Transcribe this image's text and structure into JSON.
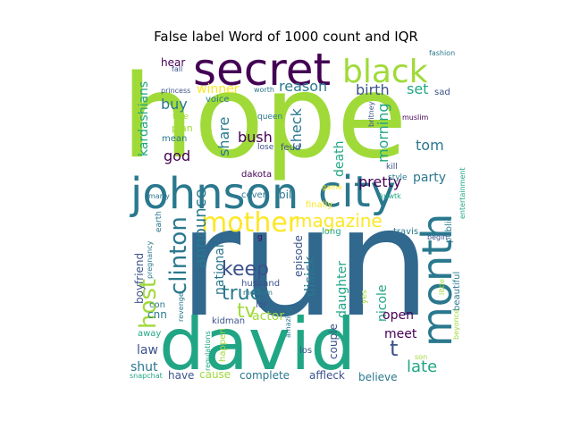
{
  "title": "False label Word of 1000 count and IQR",
  "words": [
    {
      "text": "hope",
      "color": "#a0da39"
    },
    {
      "text": "run",
      "color": "#31688e"
    },
    {
      "text": "david",
      "color": "#21a685"
    },
    {
      "text": "secret",
      "color": "#440154"
    },
    {
      "text": "black",
      "color": "#a0da39"
    },
    {
      "text": "johnson",
      "color": "#2a788e"
    },
    {
      "text": "city",
      "color": "#2a788e"
    },
    {
      "text": "month",
      "color": "#2a788e"
    },
    {
      "text": "mother",
      "color": "#fde725"
    },
    {
      "text": "magazine",
      "color": "#fde725"
    },
    {
      "text": "clinton",
      "color": "#2a788e"
    },
    {
      "text": "announce",
      "color": "#2a788e"
    },
    {
      "text": "host",
      "color": "#a0da39"
    },
    {
      "text": "national",
      "color": "#2a788e"
    },
    {
      "text": "keep",
      "color": "#3b528b"
    },
    {
      "text": "true",
      "color": "#2a788e"
    },
    {
      "text": "tv",
      "color": "#a0da39"
    },
    {
      "text": "kardashians",
      "color": "#21a685"
    },
    {
      "text": "reason",
      "color": "#2a788e"
    },
    {
      "text": "birth",
      "color": "#3b528b"
    },
    {
      "text": "set",
      "color": "#21a685"
    },
    {
      "text": "sad",
      "color": "#3b528b"
    },
    {
      "text": "buy",
      "color": "#2a788e"
    },
    {
      "text": "hear",
      "color": "#440154"
    },
    {
      "text": "winner",
      "color": "#fde725"
    },
    {
      "text": "share",
      "color": "#2a788e"
    },
    {
      "text": "bush",
      "color": "#440154"
    },
    {
      "text": "check",
      "color": "#2a788e"
    },
    {
      "text": "death",
      "color": "#21a685"
    },
    {
      "text": "tom",
      "color": "#2a788e"
    },
    {
      "text": "party",
      "color": "#2a788e"
    },
    {
      "text": "pretty",
      "color": "#440154"
    },
    {
      "text": "god",
      "color": "#440154"
    },
    {
      "text": "morning",
      "color": "#21a685"
    },
    {
      "text": "nicole",
      "color": "#21a685"
    },
    {
      "text": "disick",
      "color": "#2a788e"
    },
    {
      "text": "episode",
      "color": "#3b528b"
    },
    {
      "text": "daughter",
      "color": "#21a685"
    },
    {
      "text": "open",
      "color": "#440154"
    },
    {
      "text": "meet",
      "color": "#440154"
    },
    {
      "text": "t",
      "color": "#3b528b"
    },
    {
      "text": "late",
      "color": "#21a685"
    },
    {
      "text": "actor",
      "color": "#a0da39"
    },
    {
      "text": "law",
      "color": "#3b528b"
    },
    {
      "text": "shut",
      "color": "#2a788e"
    },
    {
      "text": "have",
      "color": "#3b528b"
    },
    {
      "text": "cause",
      "color": "#a0da39"
    },
    {
      "text": "complete",
      "color": "#2a788e"
    },
    {
      "text": "affleck",
      "color": "#3b528b"
    },
    {
      "text": "believe",
      "color": "#2a788e"
    },
    {
      "text": "beautiful",
      "color": "#2a788e"
    },
    {
      "text": "public",
      "color": "#2a788e"
    },
    {
      "text": "boyfriend",
      "color": "#3b528b"
    },
    {
      "text": "cnn",
      "color": "#2a788e"
    },
    {
      "text": "lol",
      "color": "#3b528b"
    },
    {
      "text": "husband",
      "color": "#3b528b"
    },
    {
      "text": "couple",
      "color": "#3b528b"
    },
    {
      "text": "travis",
      "color": "#2a788e"
    },
    {
      "text": "long",
      "color": "#21a685"
    },
    {
      "text": "finally",
      "color": "#fde725"
    },
    {
      "text": "bill",
      "color": "#2a788e"
    },
    {
      "text": "cover",
      "color": "#2a788e"
    },
    {
      "text": "dakota",
      "color": "#440154"
    },
    {
      "text": "kill",
      "color": "#3b528b"
    },
    {
      "text": "style",
      "color": "#2a788e"
    },
    {
      "text": "game",
      "color": "#fde725"
    },
    {
      "text": "kuwtk",
      "color": "#21a685"
    },
    {
      "text": "fashion",
      "color": "#2a788e"
    },
    {
      "text": "muslim",
      "color": "#440154"
    },
    {
      "text": "entertainment",
      "color": "#21a685"
    },
    {
      "text": "britney",
      "color": "#3b528b"
    },
    {
      "text": "queen",
      "color": "#2a788e"
    },
    {
      "text": "lose",
      "color": "#3b528b"
    },
    {
      "text": "feud",
      "color": "#3b528b"
    },
    {
      "text": "free",
      "color": "#a0da39"
    },
    {
      "text": "plan",
      "color": "#a0da39"
    },
    {
      "text": "mean",
      "color": "#2a788e"
    },
    {
      "text": "voice",
      "color": "#2a788e"
    },
    {
      "text": "worth",
      "color": "#2a788e"
    },
    {
      "text": "fall",
      "color": "#3b528b"
    },
    {
      "text": "princess",
      "color": "#3b528b"
    },
    {
      "text": "marry",
      "color": "#2a788e"
    },
    {
      "text": "earth",
      "color": "#2a788e"
    },
    {
      "text": "pregnancy",
      "color": "#2a788e"
    },
    {
      "text": "g",
      "color": "#440154"
    },
    {
      "text": "medium",
      "color": "#2a788e"
    },
    {
      "text": "revenge",
      "color": "#2a788e"
    },
    {
      "text": "con",
      "color": "#2a788e"
    },
    {
      "text": "away",
      "color": "#21a685"
    },
    {
      "text": "kidman",
      "color": "#3b528b"
    },
    {
      "text": "amazing",
      "color": "#2a788e"
    },
    {
      "text": "happen",
      "color": "#a0da39"
    },
    {
      "text": "regulations",
      "color": "#21a685"
    },
    {
      "text": "los",
      "color": "#3b528b"
    },
    {
      "text": "snapchat",
      "color": "#21a685"
    },
    {
      "text": "little",
      "color": "#a0da39"
    },
    {
      "text": "yes",
      "color": "#a0da39"
    },
    {
      "text": "son",
      "color": "#a0da39"
    },
    {
      "text": "beyonce",
      "color": "#a0da39"
    },
    {
      "text": "begin",
      "color": "#3b528b"
    }
  ]
}
